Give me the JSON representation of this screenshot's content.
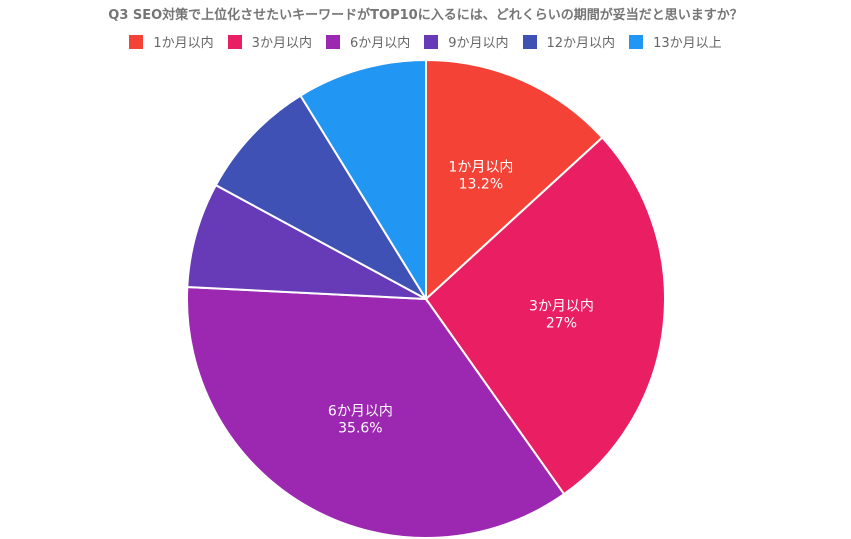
{
  "chart_data": {
    "type": "pie",
    "title": "Q3 SEO対策で上位化させたいキーワードがTOP10に入るには、どれくらいの期間が妥当だと思いますか？",
    "legend_position": "top",
    "categories": [
      "1か月以内",
      "3か月以内",
      "6か月以内",
      "9か月以内",
      "12か月以内",
      "13か月以上"
    ],
    "values": [
      13.2,
      27,
      35.6,
      7.1,
      8.3,
      8.8
    ],
    "value_labels": [
      "13.2%",
      "27%",
      "35.6%",
      "",
      "",
      ""
    ],
    "colors": [
      "#F44336",
      "#E91E63",
      "#9C27B0",
      "#673AB7",
      "#3F51B5",
      "#2196F3"
    ]
  }
}
